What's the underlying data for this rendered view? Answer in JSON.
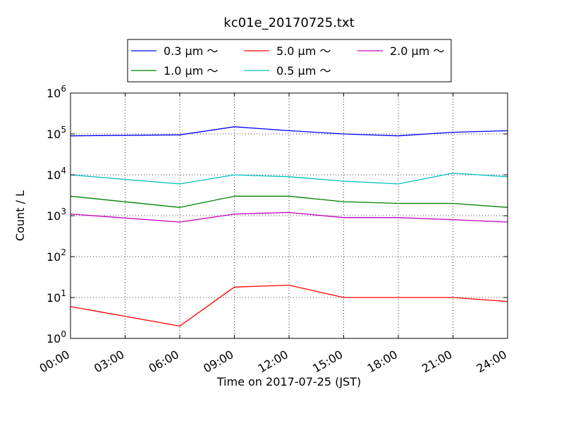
{
  "chart_data": {
    "type": "line",
    "title": "kc01e_20170725.txt",
    "xlabel": "Time on 2017-07-25 (JST)",
    "ylabel": "Count / L",
    "x_ticks": [
      "00:00",
      "03:00",
      "06:00",
      "09:00",
      "12:00",
      "15:00",
      "18:00",
      "21:00",
      "24:00"
    ],
    "x_range_hours": [
      0,
      24
    ],
    "y_scale": "log",
    "y_range": [
      1,
      1000000
    ],
    "y_ticks": [
      {
        "base": "10",
        "exp": "0"
      },
      {
        "base": "10",
        "exp": "1"
      },
      {
        "base": "10",
        "exp": "2"
      },
      {
        "base": "10",
        "exp": "3"
      },
      {
        "base": "10",
        "exp": "4"
      },
      {
        "base": "10",
        "exp": "5"
      },
      {
        "base": "10",
        "exp": "6"
      }
    ],
    "grid": true,
    "legend_position": "top-center",
    "legend_order": [
      0,
      2,
      4,
      1,
      3
    ],
    "series": [
      {
        "name": "0.3 μm ～",
        "color": "#0000ff",
        "hours": [
          0,
          6,
          9,
          12,
          15,
          18,
          21,
          24
        ],
        "values": [
          90000,
          95000,
          150000,
          120000,
          100000,
          90000,
          110000,
          120000
        ]
      },
      {
        "name": "0.5 μm ～",
        "color": "#00bfbf",
        "hours": [
          0,
          6,
          9,
          12,
          15,
          18,
          21,
          24
        ],
        "values": [
          10000,
          6000,
          10000,
          9000,
          7000,
          6000,
          11000,
          9000
        ]
      },
      {
        "name": "1.0 μm ～",
        "color": "#008000",
        "hours": [
          0,
          6,
          9,
          12,
          15,
          18,
          21,
          24
        ],
        "values": [
          3000,
          1600,
          3000,
          3000,
          2200,
          2000,
          2000,
          1600
        ]
      },
      {
        "name": "2.0 μm ～",
        "color": "#bf00bf",
        "hours": [
          0,
          6,
          9,
          12,
          15,
          18,
          21,
          24
        ],
        "values": [
          1100,
          700,
          1100,
          1200,
          900,
          900,
          800,
          700
        ]
      },
      {
        "name": "5.0 μm ～",
        "color": "#ff0000",
        "hours": [
          0,
          6,
          9,
          12,
          15,
          18,
          21,
          24
        ],
        "values": [
          6,
          2,
          18,
          20,
          10,
          10,
          10,
          8
        ]
      }
    ]
  }
}
